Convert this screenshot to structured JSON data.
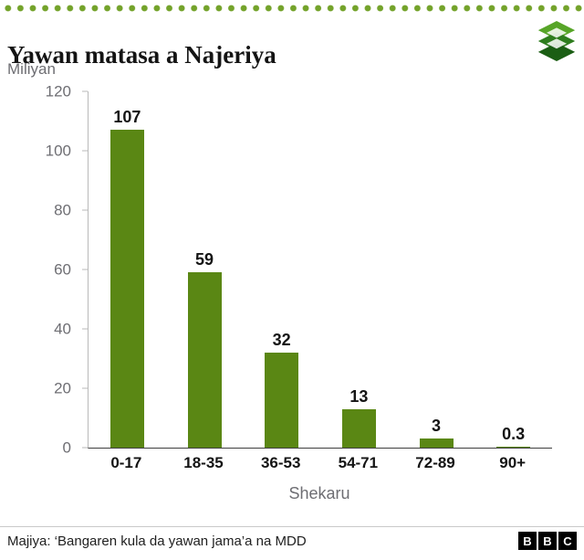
{
  "header": {
    "title": "Yawan matasa a Najeriya",
    "unit_label": "Miliyan"
  },
  "chart_data": {
    "type": "bar",
    "title": "Yawan matasa a Najeriya",
    "categories": [
      "0-17",
      "18-35",
      "36-53",
      "54-71",
      "72-89",
      "90+"
    ],
    "values": [
      107,
      59,
      32,
      13,
      3,
      0.3
    ],
    "value_labels": [
      "107",
      "59",
      "32",
      "13",
      "3",
      "0.3"
    ],
    "xlabel": "Shekaru",
    "ylabel": "Miliyan",
    "ylim": [
      0,
      120
    ],
    "yticks": [
      0,
      20,
      40,
      60,
      80,
      100,
      120
    ],
    "grid": false,
    "legend": "none",
    "bar_color": "#5a8714"
  },
  "footer": {
    "source": "Majiya: ‘Bangaren kula da yawan jama’a na MDD",
    "logo_letters": [
      "B",
      "B",
      "C"
    ]
  },
  "colors": {
    "bar": "#5a8714",
    "dots": "#74a32b",
    "axis_light": "#b9b9b9",
    "axis_dark": "#3f3f3f",
    "text_gray": "#6e6e73"
  },
  "icons": {
    "brand_logo": "green-stacked-diamonds-logo",
    "bbc_logo": "bbc-blocks-logo"
  }
}
